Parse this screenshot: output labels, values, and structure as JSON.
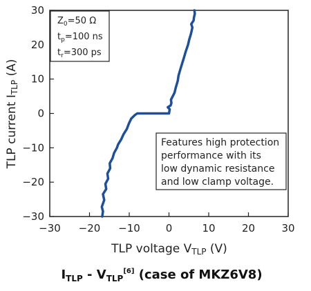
{
  "chart_data": {
    "type": "line",
    "xlabel": {
      "main": "TLP voltage V",
      "sub": "TLP",
      "tail": " (V)"
    },
    "ylabel": {
      "main": "TLP current I",
      "sub": "TLP",
      "tail": " (A)"
    },
    "xlim": [
      -30,
      30
    ],
    "ylim": [
      -30,
      30
    ],
    "x_ticks": [
      -30,
      -20,
      -10,
      0,
      10,
      20,
      30
    ],
    "y_ticks": [
      -30,
      -20,
      -10,
      0,
      10,
      20,
      30
    ],
    "grid": false,
    "line_color": "#1d4f9c",
    "series": [
      {
        "x": [
          -16.8,
          -16.6,
          -16.9,
          -16.3,
          -16.6,
          -15.8,
          -16.0,
          -15.3,
          -15.5,
          -14.8,
          -14.9,
          -14.2,
          -13.8,
          -13.1,
          -12.8,
          -12.0,
          -11.4,
          -10.6,
          -10.1,
          -9.5,
          -8.6,
          -8.0,
          -7.3,
          -6.8,
          -6.6,
          0.0,
          0.2,
          -0.3,
          0.4,
          0.6,
          0.5,
          1.4,
          1.7,
          2.2,
          2.4,
          2.9,
          3.3,
          3.7,
          4.2,
          4.8,
          5.1,
          5.5,
          5.9,
          5.6,
          6.2,
          6.3,
          6.5,
          6.4
        ],
        "y": [
          -30,
          -28.5,
          -27.2,
          -25.2,
          -23.5,
          -22.0,
          -20.5,
          -19.0,
          -17.5,
          -16.0,
          -14.5,
          -13.0,
          -11.5,
          -10.0,
          -9.0,
          -7.5,
          -6.0,
          -4.5,
          -3.0,
          -1.5,
          -0.5,
          0,
          0,
          0,
          0,
          0,
          1.2,
          1.8,
          2.3,
          3.0,
          4.0,
          6.0,
          7.5,
          9.5,
          11.0,
          13.0,
          14.5,
          16.0,
          18.0,
          20.0,
          21.5,
          23.0,
          25.0,
          26.0,
          27.0,
          28.0,
          29.0,
          30
        ]
      }
    ]
  },
  "params_box": {
    "line1": {
      "a": "Z",
      "sub": "0",
      "b": "=50 Ω"
    },
    "line2": {
      "a": "t",
      "sub": "p",
      "b": "=100 ns"
    },
    "line3": {
      "a": "t",
      "sub": "r",
      "b": "=300 ps"
    }
  },
  "note_box": {
    "lines": [
      "Features high protection",
      "performance with its",
      "low dynamic resistance",
      "and low clamp voltage."
    ]
  },
  "caption": {
    "i": "I",
    "i_sub": "TLP",
    "dash": " - V",
    "v_sub": "TLP",
    "ref": "[6]",
    "tail": " (case of MKZ6V8)"
  }
}
